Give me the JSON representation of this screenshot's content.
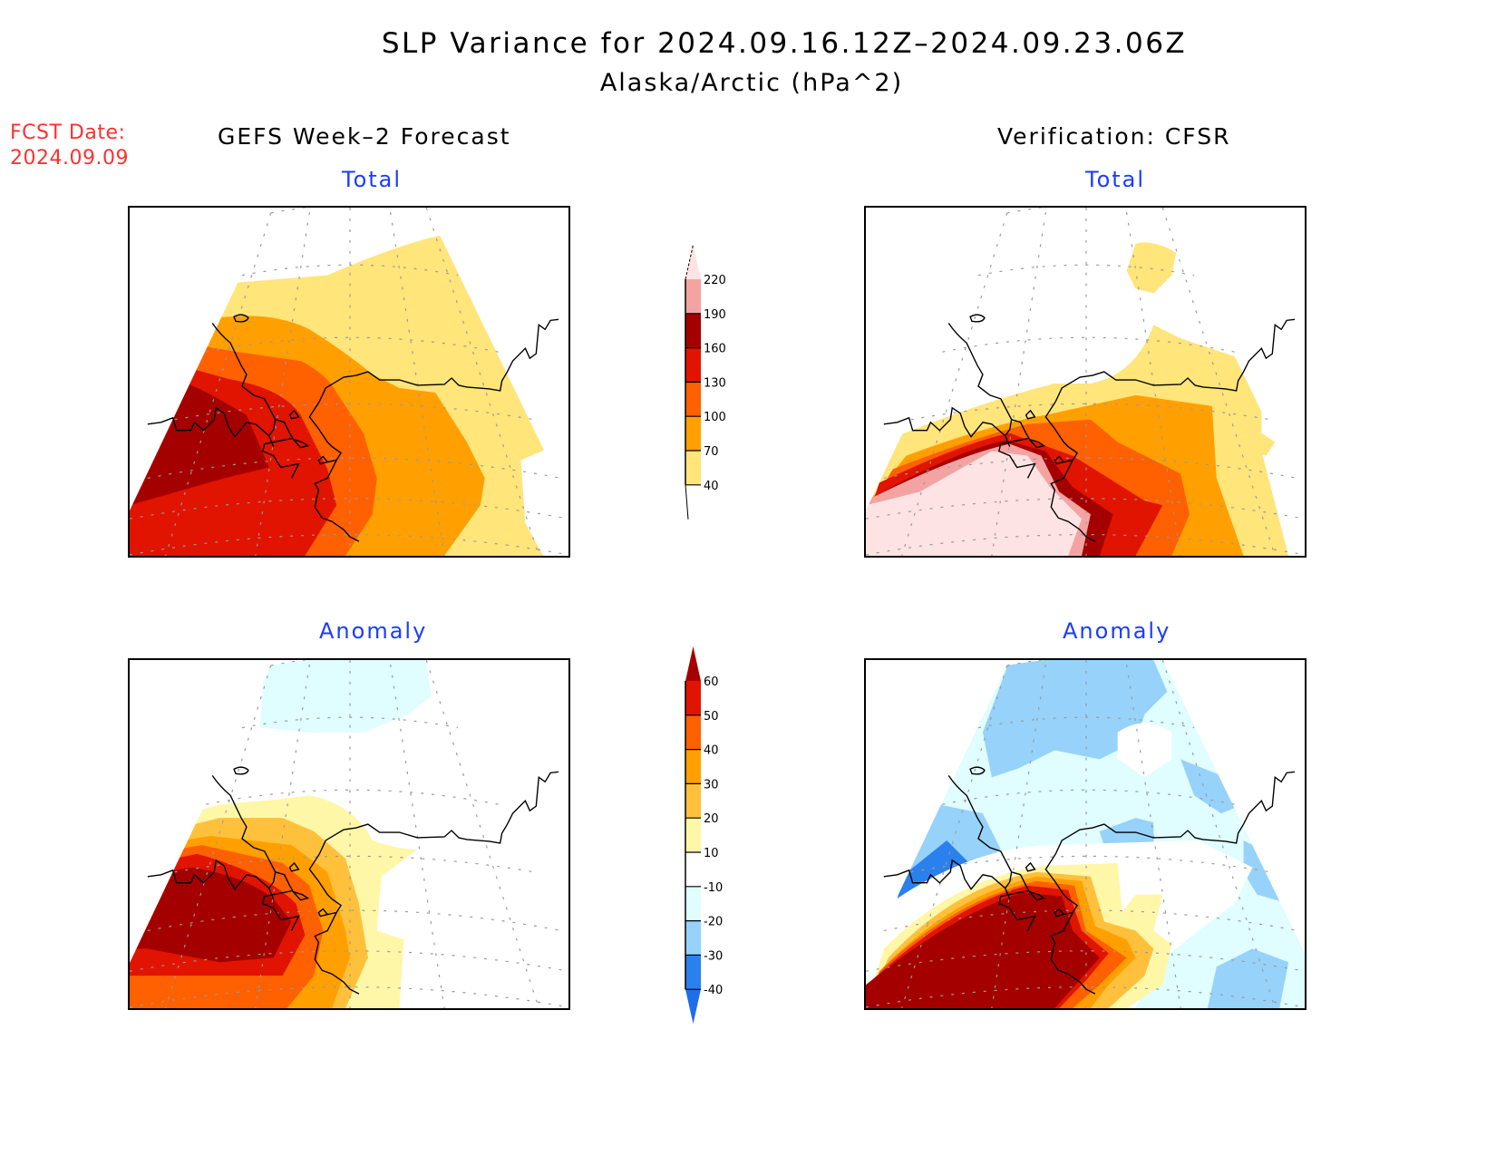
{
  "header": {
    "title": "SLP Variance for 2024.09.16.12Z–2024.09.23.06Z",
    "subtitle": "Alaska/Arctic (hPa^2)",
    "fcst_label": "FCST Date:",
    "fcst_date": "2024.09.09"
  },
  "columns": {
    "left": "GEFS Week–2 Forecast",
    "right": "Verification: CFSR"
  },
  "panels": {
    "fcst_total": {
      "label": "Total"
    },
    "verif_total": {
      "label": "Total"
    },
    "fcst_anom": {
      "label": "Anomaly"
    },
    "verif_anom": {
      "label": "Anomaly"
    }
  },
  "colorbars": {
    "total": {
      "levels": [
        "40",
        "70",
        "100",
        "130",
        "160",
        "190",
        "220"
      ],
      "colors": [
        "#ffe57a",
        "#ffa000",
        "#ff6000",
        "#e01400",
        "#a50000",
        "#f4a3a3",
        "#fde3e3"
      ],
      "below_color": "#ffffff",
      "above_color": "#fde3e3"
    },
    "anomaly": {
      "levels": [
        "-40",
        "-30",
        "-20",
        "-10",
        "10",
        "20",
        "30",
        "40",
        "50",
        "60"
      ],
      "colors": [
        "#2a80ec",
        "#96d2fa",
        "#e0fdff",
        "#ffffff",
        "#fff7a8",
        "#ffc03c",
        "#ffa000",
        "#ff6000",
        "#e01400"
      ],
      "below_color": "#1e6eeb",
      "above_color": "#a50000"
    }
  },
  "chart_data": [
    {
      "type": "heatmap",
      "title": "GEFS Week-2 Forecast — Total",
      "units": "hPa^2",
      "levels": [
        40,
        70,
        100,
        130,
        160,
        190,
        220
      ],
      "region": "Alaska/Arctic",
      "description": "Max (>160) over Bering Sea / SW of Alaska, decreasing eastward to 40-70 over interior Alaska and Yukon"
    },
    {
      "type": "heatmap",
      "title": "Verification: CFSR — Total",
      "units": "hPa^2",
      "levels": [
        40,
        70,
        100,
        130,
        160,
        190,
        220
      ],
      "region": "Alaska/Arctic",
      "description": "Max (>220) over Bering Sea and Aleutians, ring of 160-190 along Alaska Peninsula; 40-70 over Yukon and small patch over Arctic Ocean"
    },
    {
      "type": "heatmap",
      "title": "GEFS Week-2 Forecast — Anomaly",
      "units": "hPa^2",
      "levels": [
        -40,
        -30,
        -20,
        -10,
        10,
        20,
        30,
        40,
        50,
        60
      ],
      "region": "Alaska/Arctic",
      "description": "Positive anomaly >60 over Bering Sea, decreasing to 10-20 over SW Alaska; weak -10 to -20 over Arctic Ocean"
    },
    {
      "type": "heatmap",
      "title": "Verification: CFSR — Anomaly",
      "units": "hPa^2",
      "levels": [
        -40,
        -30,
        -20,
        -10,
        10,
        20,
        30,
        40,
        50,
        60
      ],
      "region": "Alaska/Arctic",
      "description": "Positive anomaly >60 over Bering Sea and Gulf of Alaska SW; negative -10 to -40 over Arctic, Siberia coast and Yukon"
    }
  ]
}
